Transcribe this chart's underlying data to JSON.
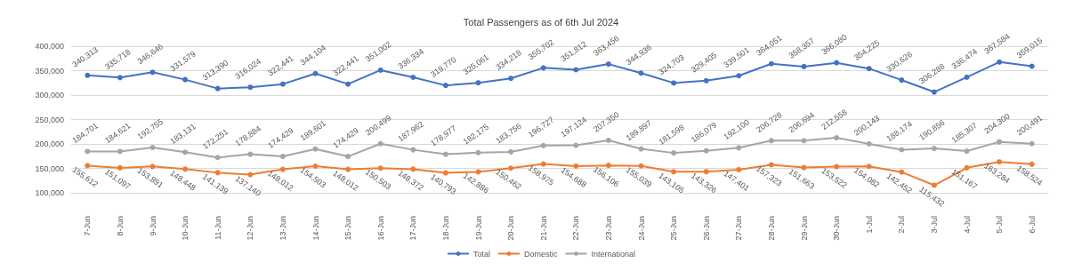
{
  "chart_data": {
    "type": "line",
    "title": "Total Passengers as of 6th Jul 2024",
    "categories": [
      "7-Jun",
      "8-Jun",
      "9-Jun",
      "10-Jun",
      "11-Jun",
      "12-Jun",
      "13-Jun",
      "14-Jun",
      "15-Jun",
      "16-Jun",
      "17-Jun",
      "18-Jun",
      "19-Jun",
      "20-Jun",
      "21-Jun",
      "22-Jun",
      "23-Jun",
      "24-Jun",
      "25-Jun",
      "26-Jun",
      "27-Jun",
      "28-Jun",
      "29-Jun",
      "30-Jun",
      "1-Jul",
      "2-Jul",
      "3-Jul",
      "4-Jul",
      "5-Jul",
      "6-Jul"
    ],
    "series": [
      {
        "name": "Total",
        "color": "#4472c4",
        "values": [
          340313,
          335718,
          346646,
          331579,
          313390,
          316024,
          322441,
          344104,
          322441,
          351002,
          336334,
          319770,
          325061,
          334218,
          355702,
          351812,
          363456,
          344936,
          324703,
          329405,
          339501,
          364051,
          358357,
          366080,
          354225,
          330626,
          306288,
          336474,
          367584,
          359015
        ],
        "value_labels": [
          "340,313",
          "335,718",
          "346,646",
          "331,579",
          "313,390",
          "316,024",
          "322,441",
          "344,104",
          "322,441",
          "351,002",
          "336,334",
          "319,770",
          "325,061",
          "334,218",
          "355,702",
          "351,812",
          "363,456",
          "344,936",
          "324,703",
          "329,405",
          "339,501",
          "364,051",
          "358,357",
          "366,080",
          "354,225",
          "330,626",
          "306,288",
          "336,474",
          "367,584",
          "359,015"
        ]
      },
      {
        "name": "Domestic",
        "color": "#ed7d31",
        "values": [
          155612,
          151097,
          153891,
          148448,
          141139,
          137140,
          148012,
          154503,
          148012,
          150503,
          148372,
          140793,
          142886,
          150462,
          158975,
          154688,
          156106,
          155039,
          143105,
          143326,
          147401,
          157323,
          151663,
          153522,
          154082,
          142452,
          115432,
          151167,
          163284,
          158524
        ],
        "value_labels": [
          "155,612",
          "151,097",
          "153,891",
          "148,448",
          "141,139",
          "137,140",
          "148,012",
          "154,503",
          "148,012",
          "150,503",
          "148,372",
          "140,793",
          "142,886",
          "150,462",
          "158,975",
          "154,688",
          "156,106",
          "155,039",
          "143,105",
          "143,326",
          "147,401",
          "157,323",
          "151,663",
          "153,522",
          "154,082",
          "142,452",
          "115,432",
          "151,167",
          "163,284",
          "158,524"
        ]
      },
      {
        "name": "International",
        "color": "#a5a5a5",
        "values": [
          184701,
          184621,
          192755,
          183131,
          172251,
          178884,
          174429,
          189601,
          174429,
          200499,
          187962,
          178977,
          182175,
          183756,
          196727,
          197124,
          207350,
          189897,
          181598,
          186079,
          192100,
          206728,
          206694,
          212558,
          200143,
          188174,
          190856,
          185307,
          204300,
          200491
        ],
        "value_labels": [
          "184,701",
          "184,621",
          "192,755",
          "183,131",
          "172,251",
          "178,884",
          "174,429",
          "189,601",
          "174,429",
          "200,499",
          "187,962",
          "178,977",
          "182,175",
          "183,756",
          "196,727",
          "197,124",
          "207,350",
          "189,897",
          "181,598",
          "186,079",
          "192,100",
          "206,728",
          "206,694",
          "212,558",
          "200,143",
          "188,174",
          "190,856",
          "185,307",
          "204,300",
          "200,491"
        ]
      }
    ],
    "ylim": [
      100000,
      400000
    ],
    "yticks": [
      {
        "value": 100000,
        "label": "100,000"
      },
      {
        "value": 150000,
        "label": "150,000"
      },
      {
        "value": 200000,
        "label": "200,000"
      },
      {
        "value": 250000,
        "label": "250,000"
      },
      {
        "value": 300000,
        "label": "300,000"
      },
      {
        "value": 350000,
        "label": "350,000"
      },
      {
        "value": 400000,
        "label": "400,000"
      }
    ],
    "grid": "y",
    "legend": "bottom",
    "marker": "circle"
  }
}
